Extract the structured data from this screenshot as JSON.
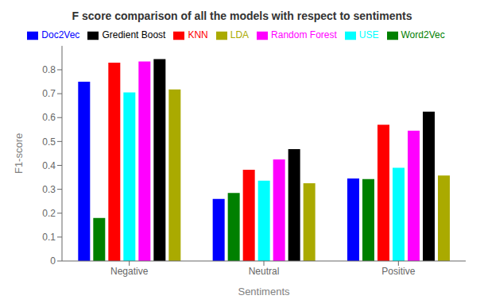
{
  "chart_data": {
    "type": "bar",
    "title": "F score comparison of all the models with respect to sentiments",
    "x_label": "Sentiments",
    "y_label": "F1-score",
    "categories": [
      "Negative",
      "Neutral",
      "Positive"
    ],
    "series": [
      {
        "name": "Doc2Vec",
        "color": "blue",
        "values": [
          0.75,
          0.26,
          0.345
        ]
      },
      {
        "name": "Word2Vec",
        "color": "green",
        "values": [
          0.18,
          0.285,
          0.343
        ]
      },
      {
        "name": "KNN",
        "color": "red",
        "values": [
          0.83,
          0.382,
          0.57
        ]
      },
      {
        "name": "USE",
        "color": "cyan",
        "values": [
          0.705,
          0.336,
          0.39
        ]
      },
      {
        "name": "Random Forest",
        "color": "magenta",
        "values": [
          0.835,
          0.425,
          0.545
        ]
      },
      {
        "name": "Gredient Boost",
        "color": "black",
        "values": [
          0.845,
          0.468,
          0.625
        ]
      },
      {
        "name": "LDA",
        "color": "#aaaa00",
        "values": [
          0.718,
          0.325,
          0.358
        ]
      }
    ],
    "ylim": [
      0,
      0.9
    ],
    "yticks": [
      0,
      0.1,
      0.2,
      0.3,
      0.4,
      0.5,
      0.6,
      0.7,
      0.8
    ],
    "grid": false,
    "legend": "top"
  }
}
